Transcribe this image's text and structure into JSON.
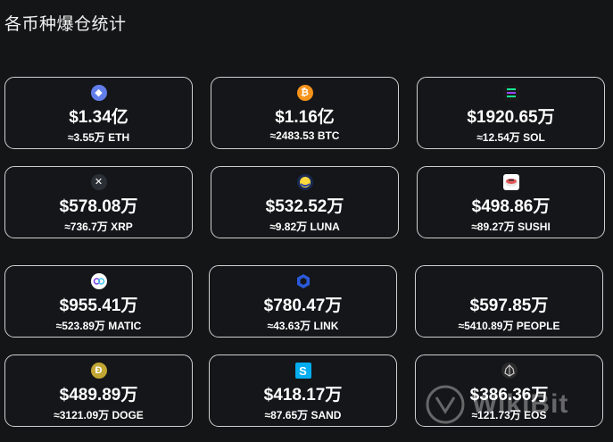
{
  "title": "各币种爆仓统计",
  "cards": [
    {
      "amount": "$1.34亿",
      "sub": "≈3.55万 ETH",
      "icon": "ethereum-icon",
      "color": "#627eea",
      "glyph": "◆"
    },
    {
      "amount": "$1.16亿",
      "sub": "≈2483.53 BTC",
      "icon": "bitcoin-icon",
      "color": "#f7931a",
      "glyph": "₿"
    },
    {
      "amount": "$1920.65万",
      "sub": "≈12.54万 SOL",
      "icon": "solana-icon",
      "color": "#1a1a1a",
      "glyph": "≡"
    },
    {
      "amount": "$578.08万",
      "sub": "≈736.7万 XRP",
      "icon": "xrp-icon",
      "color": "#23292f",
      "glyph": "✕"
    },
    {
      "amount": "$532.52万",
      "sub": "≈9.82万 LUNA",
      "icon": "luna-icon",
      "color": "#172852",
      "glyph": "◐"
    },
    {
      "amount": "$498.86万",
      "sub": "≈89.27万 SUSHI",
      "icon": "sushi-icon",
      "color": "#0e0f23",
      "glyph": "🍣"
    },
    {
      "amount": "$955.41万",
      "sub": "≈523.89万 MATIC",
      "icon": "polygon-icon",
      "color": "#ffffff",
      "glyph": "∞"
    },
    {
      "amount": "$780.47万",
      "sub": "≈43.63万 LINK",
      "icon": "chainlink-icon",
      "color": "#2a5ada",
      "glyph": "⬡"
    },
    {
      "amount": "$597.85万",
      "sub": "≈5410.89万 PEOPLE",
      "icon": "",
      "color": "",
      "glyph": ""
    },
    {
      "amount": "$489.89万",
      "sub": "≈3121.09万 DOGE",
      "icon": "dogecoin-icon",
      "color": "#c2a633",
      "glyph": "Ð"
    },
    {
      "amount": "$418.17万",
      "sub": "≈87.65万 SAND",
      "icon": "sandbox-icon",
      "color": "#04adef",
      "glyph": "S"
    },
    {
      "amount": "$386.36万",
      "sub": "≈121.73万 EOS",
      "icon": "eos-icon",
      "color": "#1f1f1f",
      "glyph": "⟁"
    }
  ],
  "watermark": {
    "text": "WikiBit",
    "icon": "wikibit-logo-icon"
  }
}
